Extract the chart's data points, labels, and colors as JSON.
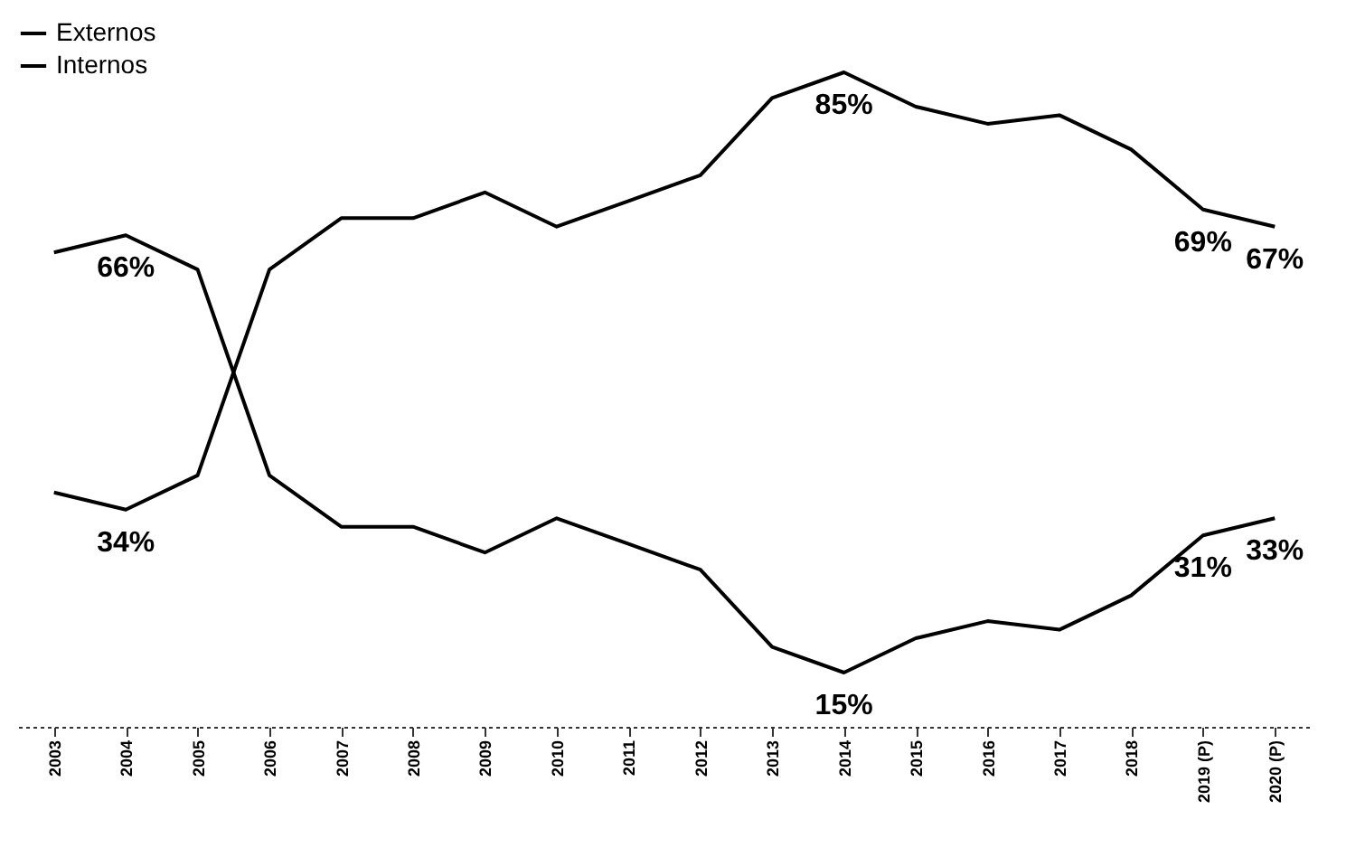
{
  "chart_data": {
    "type": "line",
    "categories": [
      "2003",
      "2004",
      "2005",
      "2006",
      "2007",
      "2008",
      "2009",
      "2010",
      "2011",
      "2012",
      "2013",
      "2014",
      "2015",
      "2016",
      "2017",
      "2018",
      "2019 (P)",
      "2020 (P)"
    ],
    "series": [
      {
        "name": "Externos",
        "color": "#000000",
        "values": [
          36,
          34,
          38,
          62,
          68,
          68,
          71,
          67,
          70,
          73,
          82,
          85,
          81,
          79,
          80,
          76,
          69,
          67
        ],
        "value_labels": [
          null,
          "34%",
          null,
          null,
          null,
          null,
          null,
          null,
          null,
          null,
          null,
          "85%",
          null,
          null,
          null,
          null,
          "69%",
          "67%"
        ]
      },
      {
        "name": "Internos",
        "color": "#000000",
        "values": [
          64,
          66,
          62,
          38,
          32,
          32,
          29,
          33,
          30,
          27,
          18,
          15,
          19,
          21,
          20,
          24,
          31,
          33
        ],
        "value_labels": [
          null,
          "66%",
          null,
          null,
          null,
          null,
          null,
          null,
          null,
          null,
          null,
          "15%",
          null,
          null,
          null,
          null,
          "31%",
          "33%"
        ]
      }
    ],
    "legend": "top left",
    "marker": "none",
    "line_style": "solid",
    "tick_labels": "x"
  }
}
